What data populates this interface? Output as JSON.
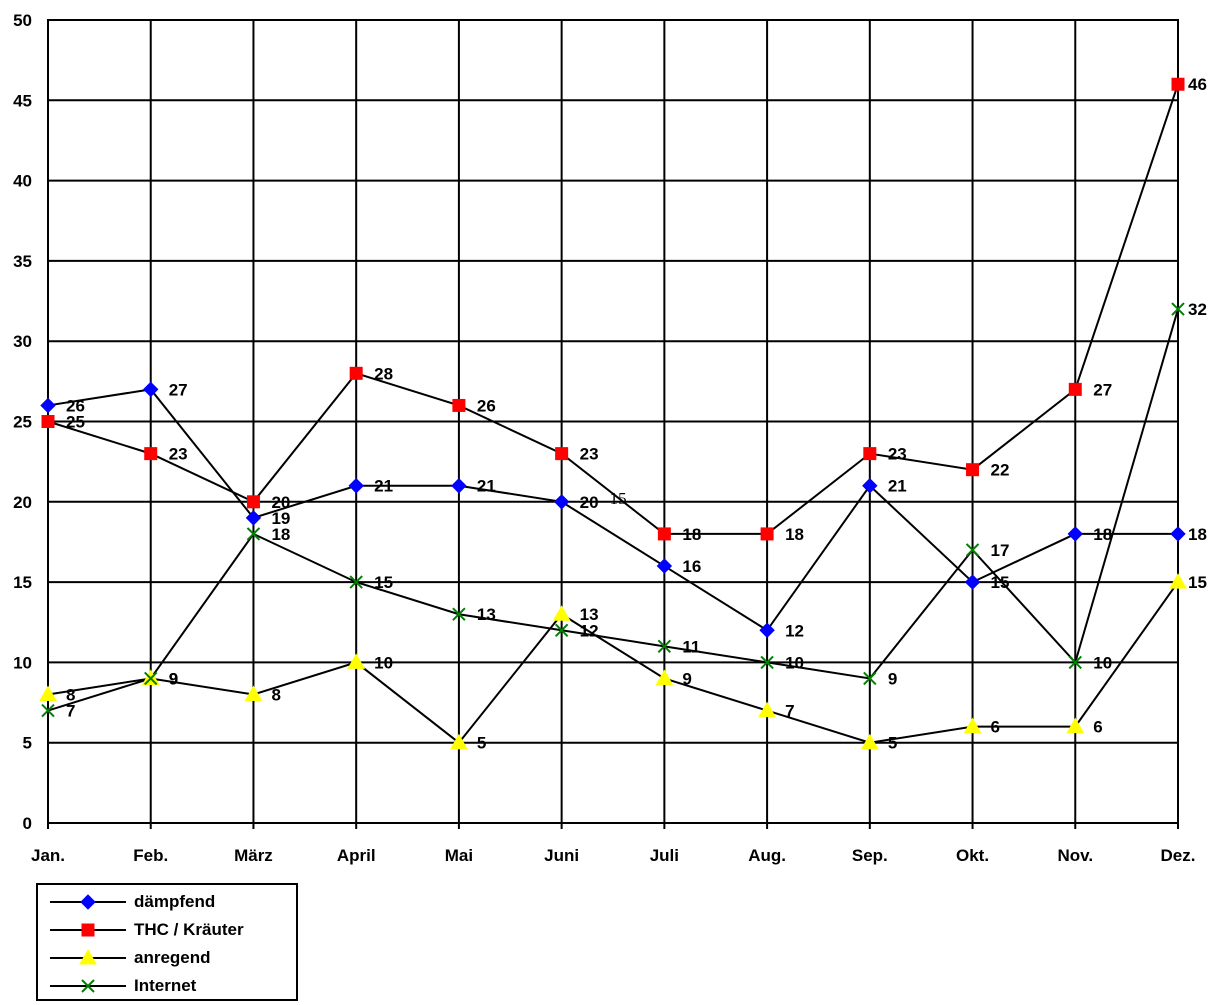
{
  "chart_data": {
    "type": "line",
    "categories": [
      "Jan.",
      "Feb.",
      "März",
      "April",
      "Mai",
      "Juni",
      "Juli",
      "Aug.",
      "Sep.",
      "Okt.",
      "Nov.",
      "Dez."
    ],
    "ylim": [
      0,
      50
    ],
    "yticks": [
      0,
      5,
      10,
      15,
      20,
      25,
      30,
      35,
      40,
      45,
      50
    ],
    "grid": true,
    "legend_position": "bottom-left",
    "series": [
      {
        "name": "dämpfend",
        "color": "#0000ff",
        "marker": "diamond",
        "values": [
          26,
          27,
          19,
          21,
          21,
          20,
          16,
          12,
          21,
          15,
          18,
          18
        ]
      },
      {
        "name": "THC / Kräuter",
        "color": "#ff0000",
        "marker": "square",
        "values": [
          25,
          23,
          20,
          28,
          26,
          23,
          18,
          18,
          23,
          22,
          27,
          46
        ]
      },
      {
        "name": "anregend",
        "color": "#ffff00",
        "marker": "triangle",
        "values": [
          8,
          9,
          8,
          10,
          5,
          13,
          9,
          7,
          5,
          6,
          6,
          15
        ]
      },
      {
        "name": "Internet",
        "color": "#008000",
        "marker": "x",
        "values": [
          7,
          9,
          18,
          15,
          13,
          12,
          11,
          10,
          9,
          17,
          10,
          32
        ]
      }
    ],
    "annotations": [
      {
        "text": "15",
        "category": "Juni",
        "y": 20
      }
    ]
  }
}
